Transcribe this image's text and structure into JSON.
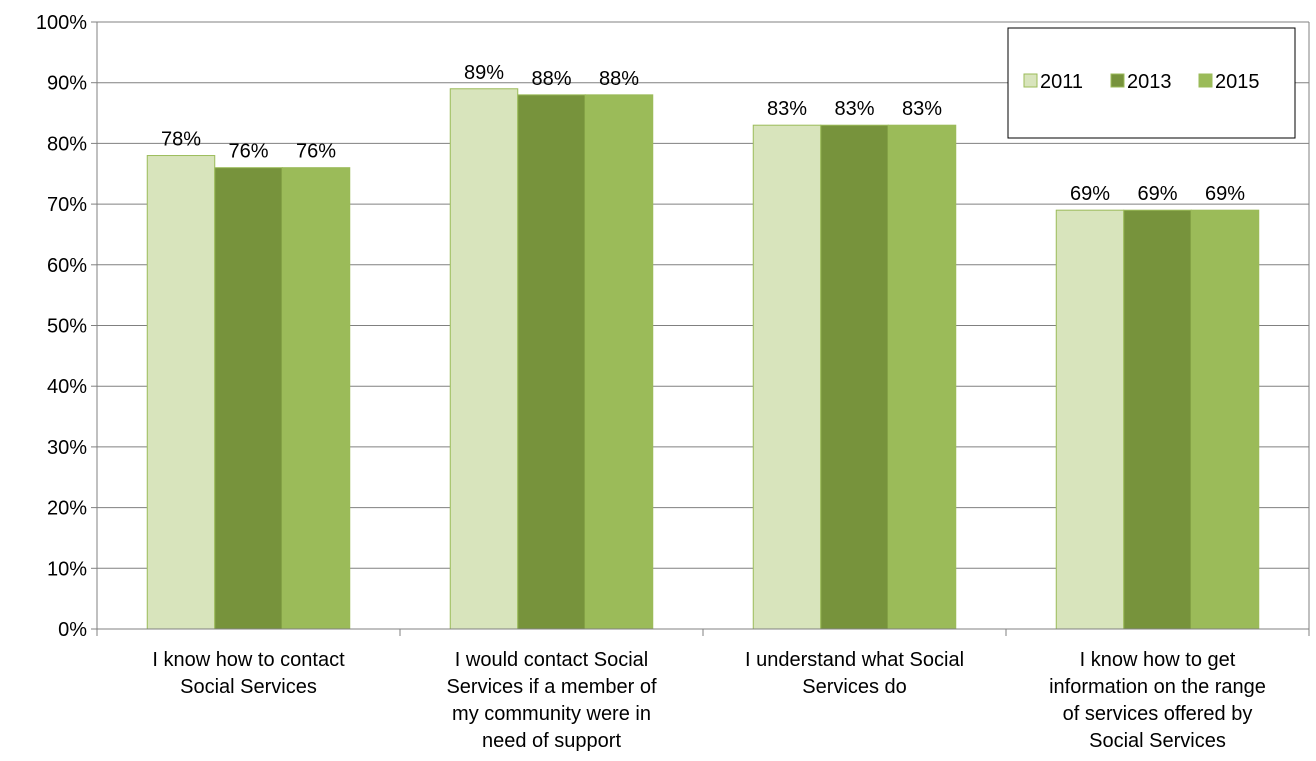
{
  "chart_data": {
    "type": "bar",
    "categories": [
      [
        "I know how to contact",
        "Social Services"
      ],
      [
        "I would contact Social",
        "Services if a member of",
        "my community were in",
        "need of support"
      ],
      [
        "I understand what Social",
        "Services do"
      ],
      [
        "I know how to get",
        "information on the range",
        "of services offered by",
        "Social Services"
      ]
    ],
    "series": [
      {
        "name": "2011",
        "values": [
          78,
          89,
          83,
          69
        ],
        "color": "#d8e4bc"
      },
      {
        "name": "2013",
        "values": [
          76,
          88,
          83,
          69
        ],
        "color": "#77933c"
      },
      {
        "name": "2015",
        "values": [
          76,
          88,
          83,
          69
        ],
        "color": "#9bbb59"
      }
    ],
    "data_labels": [
      [
        "78%",
        "89%",
        "83%",
        "69%"
      ],
      [
        "76%",
        "88%",
        "83%",
        "69%"
      ],
      [
        "76%",
        "88%",
        "83%",
        "69%"
      ]
    ],
    "y_ticks": [
      "0%",
      "10%",
      "20%",
      "30%",
      "40%",
      "50%",
      "60%",
      "70%",
      "80%",
      "90%",
      "100%"
    ],
    "ylim": [
      0,
      100
    ],
    "grid": true,
    "legend_position": "top-right",
    "bar_border_color": "#9bbb59"
  }
}
